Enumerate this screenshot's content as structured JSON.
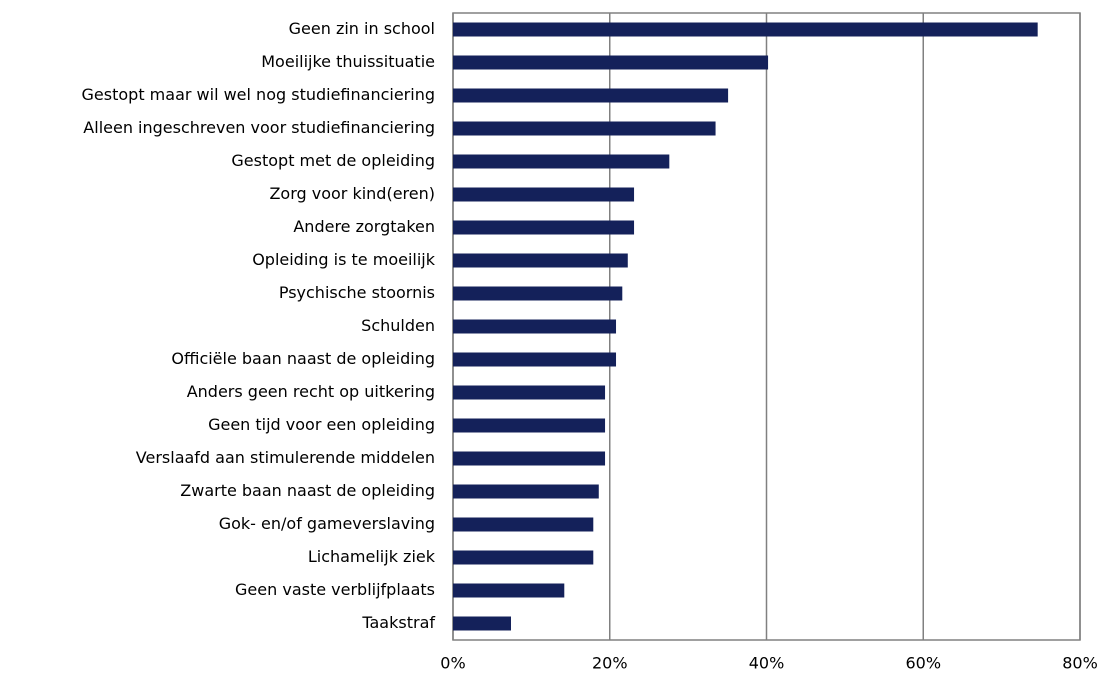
{
  "chart_data": {
    "type": "bar",
    "orientation": "horizontal",
    "categories": [
      "Geen zin in school",
      "Moeilijke thuissituatie",
      "Gestopt maar wil wel nog studiefinanciering",
      "Alleen ingeschreven voor studiefinanciering",
      "Gestopt met de opleiding",
      "Zorg voor kind(eren)",
      "Andere zorgtaken",
      "Opleiding is te moeilijk",
      "Psychische stoornis",
      "Schulden",
      "Officiële baan naast de opleiding",
      "Anders geen recht op uitkering",
      "Geen tijd voor een opleiding",
      "Verslaafd aan stimulerende middelen",
      "Zwarte baan naast de opleiding",
      "Gok- en/of gameverslaving",
      "Lichamelijk ziek",
      "Geen vaste verblijfplaats",
      "Taakstraf"
    ],
    "values": [
      74.6,
      40.2,
      35.1,
      33.5,
      27.6,
      23.1,
      23.1,
      22.3,
      21.6,
      20.8,
      20.8,
      19.4,
      19.4,
      19.4,
      18.6,
      17.9,
      17.9,
      14.2,
      7.4
    ],
    "color": "#14215a",
    "xlim": [
      0,
      80
    ],
    "xticks": [
      {
        "value": 0,
        "label": "0%"
      },
      {
        "value": 20,
        "label": "20%"
      },
      {
        "value": 40,
        "label": "40%"
      },
      {
        "value": 60,
        "label": "60%"
      },
      {
        "value": 80,
        "label": "80%"
      }
    ],
    "grid": true
  }
}
